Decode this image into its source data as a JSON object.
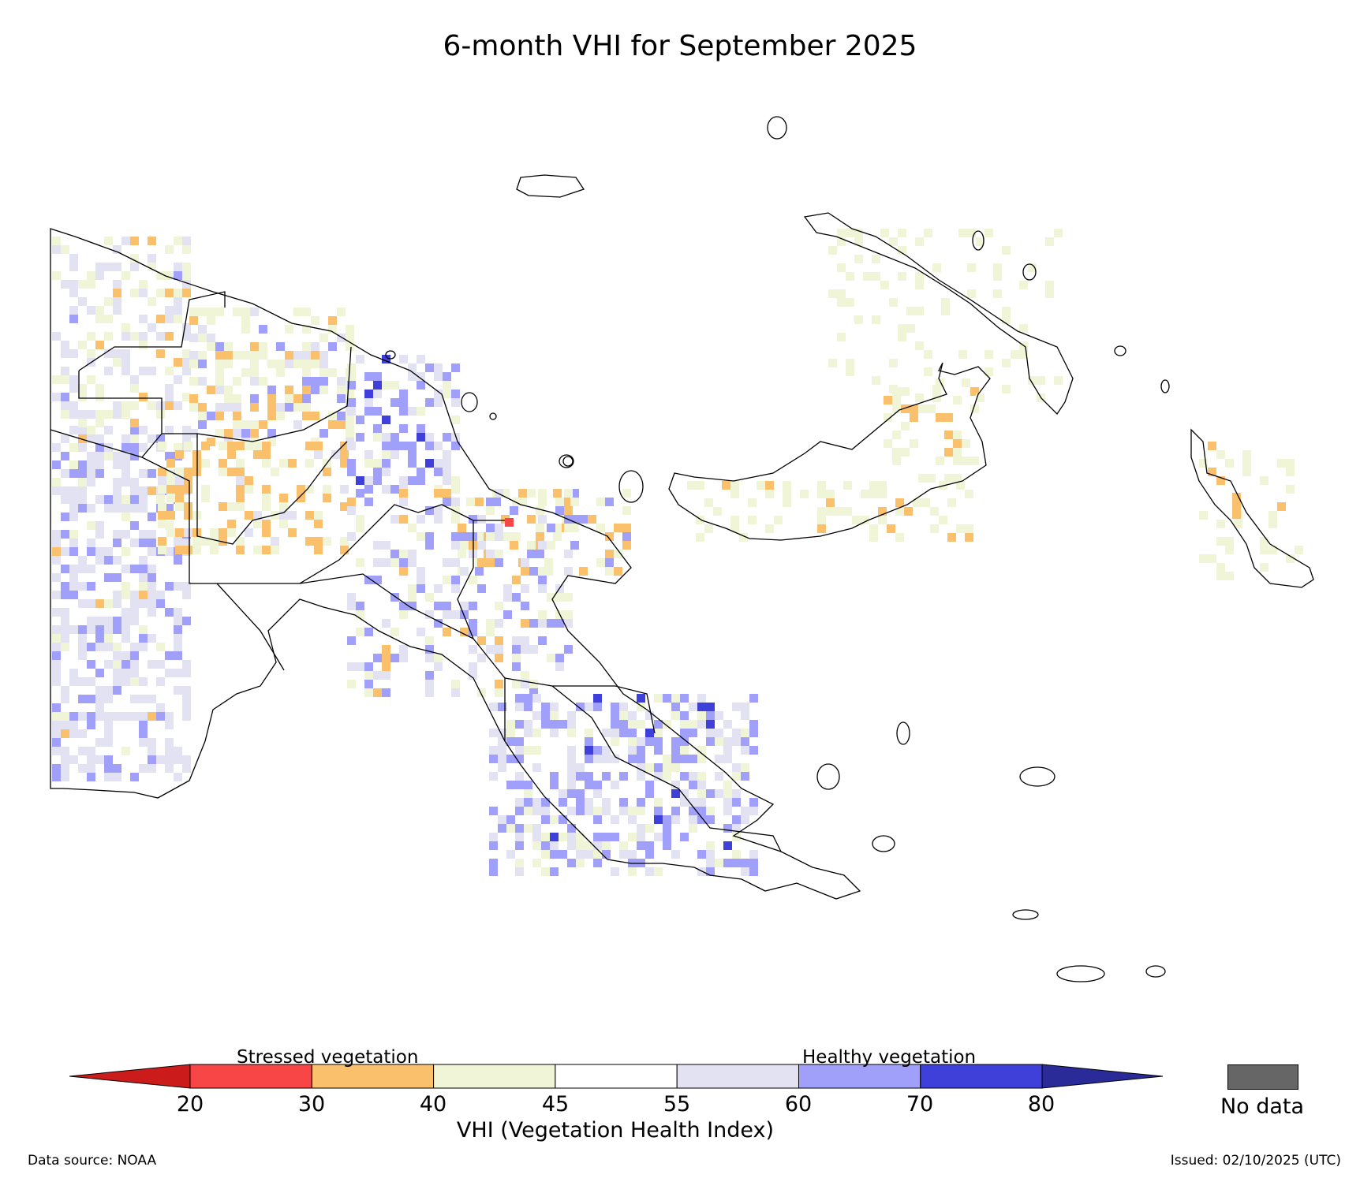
{
  "title": "6-month VHI for September 2025",
  "legend": {
    "stressed_label": "Stressed vegetation",
    "healthy_label": "Healthy vegetation",
    "axis_title": "VHI (Vegetation Health Index)",
    "ticks": [
      "20",
      "30",
      "40",
      "45",
      "55",
      "60",
      "70",
      "80"
    ],
    "bins": [
      {
        "range": "<20",
        "color": "#cc1b1b"
      },
      {
        "range": "20-30",
        "color": "#f84545"
      },
      {
        "range": "30-40",
        "color": "#fbc06c"
      },
      {
        "range": "40-45",
        "color": "#eff5d6"
      },
      {
        "range": "45-55",
        "color": "#ffffff"
      },
      {
        "range": "55-60",
        "color": "#e2e2f2"
      },
      {
        "range": "60-70",
        "color": "#a0a0fa"
      },
      {
        "range": "70-80",
        "color": "#3f3fd9"
      },
      {
        "range": ">80",
        "color": "#2a2a99"
      }
    ],
    "no_data_label": "No data",
    "no_data_color": "#666666"
  },
  "footer": {
    "source": "Data source: NOAA",
    "issued": "Issued: 02/10/2025 (UTC)"
  },
  "map": {
    "region": "Papua New Guinea",
    "variable": "VHI",
    "period": "6-month",
    "month": "September 2025"
  }
}
